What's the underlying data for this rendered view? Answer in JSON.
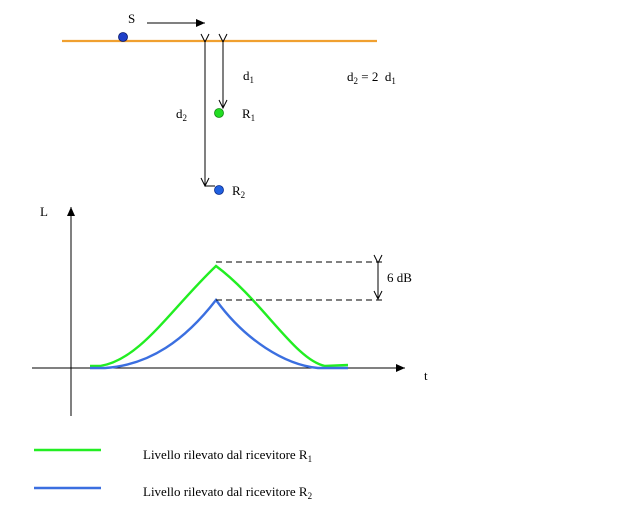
{
  "source": {
    "label": "S"
  },
  "receivers": {
    "r1": {
      "letter": "R",
      "index": "1"
    },
    "r2": {
      "letter": "R",
      "index": "2"
    }
  },
  "distances": {
    "d1": {
      "letter": "d",
      "index": "1"
    },
    "d2": {
      "letter": "d",
      "index": "2"
    },
    "relation": {
      "lhs_letter": "d",
      "lhs_index": "2",
      "mid": " = 2  ",
      "rhs_letter": "d",
      "rhs_index": "1"
    }
  },
  "graph": {
    "y_axis_label": "L",
    "x_axis_label": "t",
    "difference_label": "6 dB"
  },
  "legend": {
    "r1": {
      "text": "Livello rilevato dal ricevitore R",
      "index": "1"
    },
    "r2": {
      "text": "Livello rilevato dal ricevitore R",
      "index": "2"
    }
  },
  "colors": {
    "road": "#f0a030",
    "source_dot": "#1e3fc8",
    "r1_dot": "#22dd22",
    "r2_dot": "#2060e0",
    "curve_r1": "#22ee22",
    "curve_r2": "#3b6fe0"
  }
}
